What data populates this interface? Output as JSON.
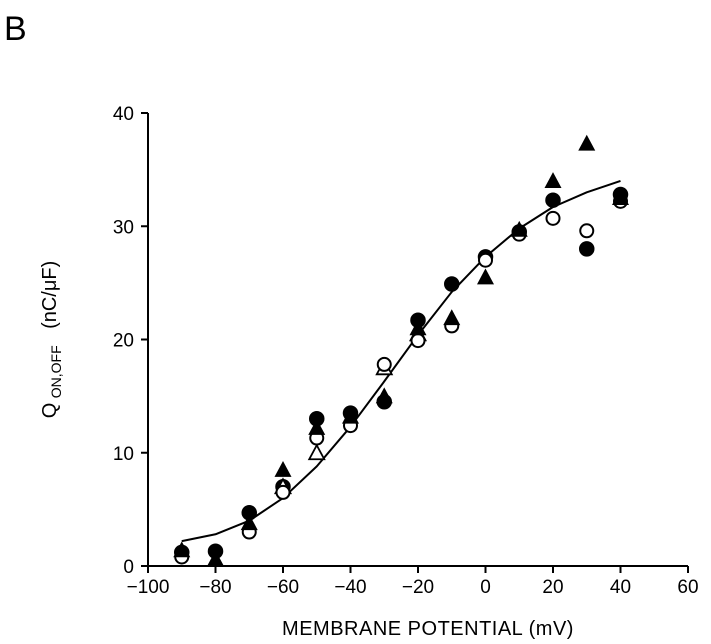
{
  "panel_label": "B",
  "chart_data": {
    "type": "scatter",
    "title": "",
    "xlabel": "MEMBRANE POTENTIAL (mV)",
    "ylabel_main": "Q",
    "ylabel_sub": "ON,OFF",
    "ylabel_unit": "(nC/μF)",
    "xlim": [
      -100,
      60
    ],
    "ylim": [
      0,
      40
    ],
    "xticks": [
      -100,
      -80,
      -60,
      -40,
      -20,
      0,
      20,
      40,
      60
    ],
    "yticks": [
      0,
      10,
      20,
      30,
      40
    ],
    "grid": false,
    "series": [
      {
        "marker": "filled-circle",
        "color": "#000000",
        "points": [
          [
            -90,
            1.2
          ],
          [
            -80,
            1.3
          ],
          [
            -70,
            4.7
          ],
          [
            -60,
            7.0
          ],
          [
            -50,
            13.0
          ],
          [
            -40,
            13.5
          ],
          [
            -30,
            14.5
          ],
          [
            -20,
            21.7
          ],
          [
            -10,
            24.9
          ],
          [
            0,
            27.3
          ],
          [
            10,
            29.5
          ],
          [
            20,
            32.3
          ],
          [
            30,
            28.0
          ],
          [
            40,
            32.8
          ]
        ]
      },
      {
        "marker": "open-circle",
        "color": "#000000",
        "points": [
          [
            -90,
            0.8
          ],
          [
            -70,
            3.0
          ],
          [
            -60,
            6.5
          ],
          [
            -50,
            11.3
          ],
          [
            -40,
            12.4
          ],
          [
            -30,
            17.8
          ],
          [
            -20,
            19.9
          ],
          [
            -10,
            21.2
          ],
          [
            0,
            27.0
          ],
          [
            10,
            29.3
          ],
          [
            20,
            30.7
          ],
          [
            30,
            29.6
          ],
          [
            40,
            32.2
          ]
        ]
      },
      {
        "marker": "filled-triangle",
        "color": "#000000",
        "points": [
          [
            -90,
            1.4
          ],
          [
            -80,
            0.6
          ],
          [
            -70,
            3.8
          ],
          [
            -60,
            8.5
          ],
          [
            -50,
            12.2
          ],
          [
            -40,
            13.2
          ],
          [
            -30,
            15.0
          ],
          [
            -20,
            21.0
          ],
          [
            -10,
            21.9
          ],
          [
            0,
            25.5
          ],
          [
            10,
            29.7
          ],
          [
            20,
            34.0
          ],
          [
            30,
            37.3
          ],
          [
            40,
            32.5
          ]
        ]
      },
      {
        "marker": "open-triangle",
        "color": "#000000",
        "points": [
          [
            -60,
            7.0
          ],
          [
            -50,
            10.0
          ],
          [
            -30,
            17.5
          ],
          [
            -20,
            20.5
          ]
        ]
      },
      {
        "marker": "line",
        "color": "#000000",
        "points": [
          [
            -90,
            2.2
          ],
          [
            -80,
            2.8
          ],
          [
            -70,
            4.0
          ],
          [
            -60,
            6.0
          ],
          [
            -50,
            8.8
          ],
          [
            -40,
            12.3
          ],
          [
            -30,
            16.3
          ],
          [
            -20,
            20.4
          ],
          [
            -10,
            24.2
          ],
          [
            0,
            27.3
          ],
          [
            10,
            29.8
          ],
          [
            20,
            31.7
          ],
          [
            30,
            33.0
          ],
          [
            40,
            34.0
          ]
        ]
      }
    ]
  }
}
